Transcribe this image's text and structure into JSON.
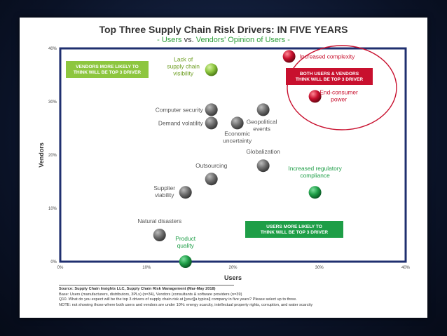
{
  "title": "Top Three Supply Chain Risk Drivers: IN FIVE YEARS",
  "subtitle": {
    "prefix": "- Users",
    "vs": " vs. ",
    "suffix": "Vendors' Opinion of Users -"
  },
  "footnote": {
    "source": "Source:  Supply Chain Insights LLC, Supply Chain Risk Management (Mar-May 2018)",
    "base": "Base: Users (manufacturers, distributors, 3PLs) (n=34), Vendors (consultants & software providers (n=39)",
    "question": "Q10. What do you expect will be the top 3 drivers of supply chain risk at [your][a typical] company in five years?  Please select up to three.",
    "note": "NOTE: not showing those where both users and vendors are under 10%:  energy scarcity, intellectual property rights, corruption, and water scarcity"
  },
  "chart_data": {
    "type": "scatter",
    "xlabel": "Users",
    "ylabel": "Vendors",
    "xlim": [
      0,
      40
    ],
    "ylim": [
      0,
      40
    ],
    "x_ticks": [
      "0%",
      "10%",
      "20%",
      "30%",
      "40%"
    ],
    "y_ticks": [
      "0%",
      "10%",
      "20%",
      "30%",
      "40%"
    ],
    "grid": false,
    "colors": {
      "vendors": "#8dc63f",
      "users": "#1e9e47",
      "both": "#c8102e",
      "neutral": "#777777",
      "border": "#1f2f6f"
    },
    "points": [
      {
        "label": "Increased complexity",
        "x": 26.5,
        "y": 38.5,
        "group": "both"
      },
      {
        "label": "End-consumer power",
        "x": 29.5,
        "y": 31,
        "group": "both"
      },
      {
        "label": "Lack of supply chain visibility",
        "x": 17.5,
        "y": 36,
        "group": "vendors"
      },
      {
        "label": "Computer security",
        "x": 17.5,
        "y": 28.5,
        "group": "neutral"
      },
      {
        "label": "Demand volatility",
        "x": 17.5,
        "y": 26,
        "group": "neutral"
      },
      {
        "label": "Geopolitical events",
        "x": 23.5,
        "y": 28.5,
        "group": "neutral"
      },
      {
        "label": "Economic uncertainty",
        "x": 20.5,
        "y": 26,
        "group": "neutral"
      },
      {
        "label": "Globalization",
        "x": 23.5,
        "y": 18,
        "group": "neutral"
      },
      {
        "label": "Outsourcing",
        "x": 17.5,
        "y": 15.5,
        "group": "neutral"
      },
      {
        "label": "Supplier viability",
        "x": 14.5,
        "y": 13,
        "group": "neutral"
      },
      {
        "label": "Natural disasters",
        "x": 11.5,
        "y": 5,
        "group": "neutral"
      },
      {
        "label": "Increased regulatory compliance",
        "x": 29.5,
        "y": 13,
        "group": "users"
      },
      {
        "label": "Product quality",
        "x": 14.5,
        "y": 0,
        "group": "users"
      }
    ],
    "annotations": [
      {
        "text": "VENDORS MORE LIKELY TO THINK WILL BE TOP 3 DRIVER",
        "position": "top-left"
      },
      {
        "text": "BOTH USERS & VENDORS THINK WILL BE TOP 3 DRIVER",
        "position": "top-right"
      },
      {
        "text": "USERS MORE LIKELY TO THINK WILL BE TOP 3 DRIVER",
        "position": "bottom-right"
      }
    ]
  }
}
